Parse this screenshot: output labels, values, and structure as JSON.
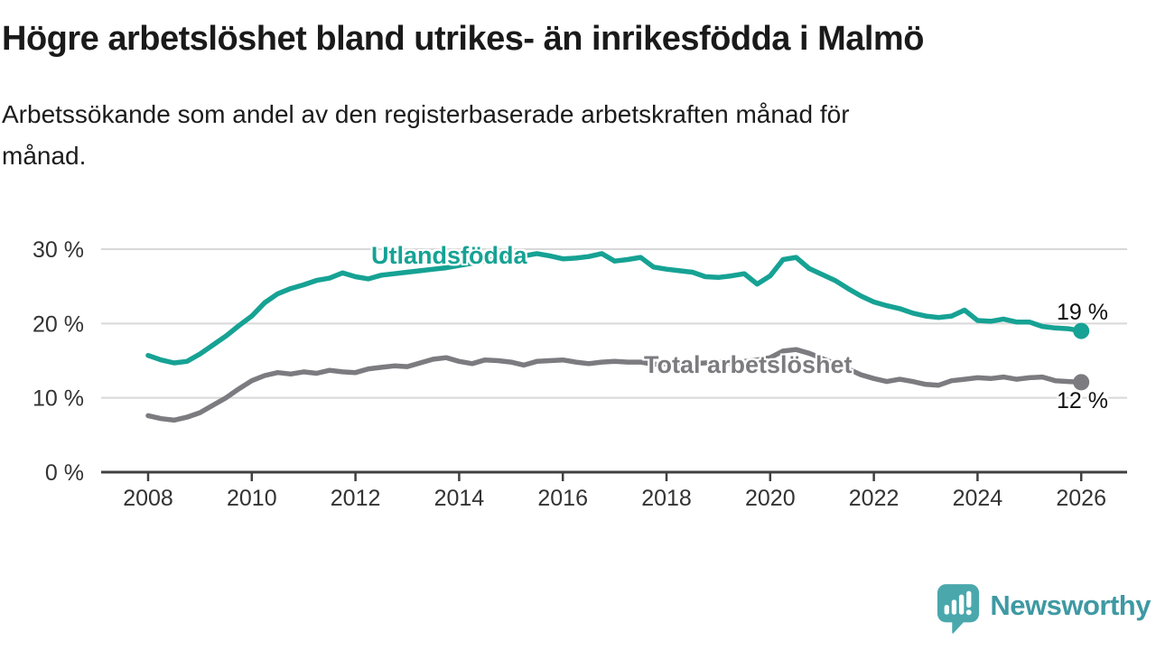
{
  "header": {
    "title": "Högre arbetslöshet bland utrikes- än inrikesfödda i Malmö",
    "subtitle": "Arbetssökande som andel av den registerbaserade arbetskraften månad för\nmånad."
  },
  "footer": {
    "brand": "Newsworthy"
  },
  "colors": {
    "accent_teal": "#16a294",
    "series_gray": "#7b7b80",
    "grid": "#d8d8d8",
    "axis": "#404040",
    "tick_text": "#333333",
    "logo_bubble": "#4aa8ad",
    "logo_text": "#3e99a3"
  },
  "chart_data": {
    "type": "line",
    "title": "Högre arbetslöshet bland utrikes- än inrikesfödda i Malmö",
    "subtitle": "Arbetssökande som andel av den registerbaserade arbetskraften månad för månad.",
    "xlabel": "",
    "ylabel": "",
    "grid": "horizontal",
    "legend_position": "inline-labels",
    "xlim": [
      2007.1,
      2026.9
    ],
    "ylim": [
      0,
      32
    ],
    "yticks": [
      0,
      10,
      20,
      30
    ],
    "ytick_labels": [
      "0 %",
      "10 %",
      "20 %",
      "30 %"
    ],
    "xticks": [
      2008,
      2010,
      2012,
      2014,
      2016,
      2018,
      2020,
      2022,
      2024,
      2026
    ],
    "xtick_labels": [
      "2008",
      "2010",
      "2012",
      "2014",
      "2016",
      "2018",
      "2020",
      "2022",
      "2024",
      "2026"
    ],
    "x_start": 2008,
    "x_step": 0.25,
    "series": [
      {
        "name": "Utlandsfödda",
        "color": "#16a294",
        "end_label": "19 %",
        "end_value": 19,
        "values": [
          15.7,
          15.1,
          14.7,
          14.9,
          15.9,
          17.1,
          18.3,
          19.7,
          21.0,
          22.8,
          24.0,
          24.7,
          25.2,
          25.8,
          26.1,
          26.8,
          26.3,
          26.0,
          26.5,
          26.7,
          26.9,
          27.1,
          27.3,
          27.5,
          27.8,
          28.1,
          28.4,
          28.7,
          28.9,
          29.1,
          29.4,
          29.1,
          28.7,
          28.8,
          29.0,
          29.4,
          28.4,
          28.6,
          28.9,
          27.6,
          27.3,
          27.1,
          26.9,
          26.3,
          26.2,
          26.4,
          26.7,
          25.3,
          26.4,
          28.6,
          28.9,
          27.4,
          26.6,
          25.8,
          24.7,
          23.7,
          22.9,
          22.4,
          22.0,
          21.4,
          21.0,
          20.8,
          21.0,
          21.8,
          20.4,
          20.3,
          20.6,
          20.2,
          20.2,
          19.6,
          19.4,
          19.3,
          19.0
        ]
      },
      {
        "name": "Total arbetslöshet",
        "color": "#7b7b80",
        "end_label": "12 %",
        "end_value": 12,
        "values": [
          7.6,
          7.2,
          7.0,
          7.4,
          8.0,
          9.0,
          10.0,
          11.2,
          12.3,
          13.0,
          13.4,
          13.2,
          13.5,
          13.3,
          13.7,
          13.5,
          13.4,
          13.9,
          14.1,
          14.3,
          14.2,
          14.7,
          15.2,
          15.4,
          14.9,
          14.6,
          15.1,
          15.0,
          14.8,
          14.4,
          14.9,
          15.0,
          15.1,
          14.8,
          14.6,
          14.8,
          14.9,
          14.8,
          14.8,
          14.5,
          14.6,
          14.7,
          14.6,
          14.7,
          14.8,
          14.7,
          14.9,
          15.1,
          15.4,
          16.3,
          16.5,
          16.0,
          15.3,
          14.6,
          13.9,
          13.1,
          12.6,
          12.2,
          12.5,
          12.2,
          11.8,
          11.7,
          12.3,
          12.5,
          12.7,
          12.6,
          12.8,
          12.5,
          12.7,
          12.8,
          12.3,
          12.2,
          12.1
        ]
      }
    ]
  }
}
